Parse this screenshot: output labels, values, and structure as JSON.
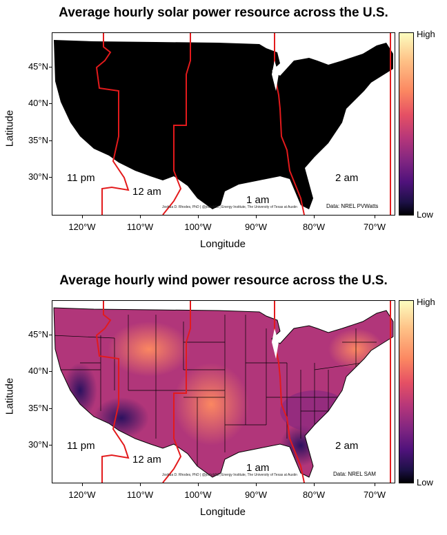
{
  "solar": {
    "title": "Average hourly solar power resource across the U.S.",
    "ylabel": "Latitude",
    "xlabel": "Longitude",
    "lat_ticks": [
      "45°N",
      "40°N",
      "35°N",
      "30°N"
    ],
    "lon_ticks": [
      "120°W",
      "110°W",
      "100°W",
      "90°W",
      "80°W",
      "70°W"
    ],
    "legend_high": "High",
    "legend_low": "Low",
    "timezones": [
      "11 pm",
      "12 am",
      "1 am",
      "2 am"
    ],
    "credit": "Joshua D. Rhodes, PhD | @joshdr83 | Energy Institute, The University of Texas at Austin",
    "source": "Data: NREL PVWatts",
    "fill_color": "#000000"
  },
  "wind": {
    "title": "Average hourly wind power resource across the U.S.",
    "ylabel": "Latitude",
    "xlabel": "Longitude",
    "lat_ticks": [
      "45°N",
      "40°N",
      "35°N",
      "30°N"
    ],
    "lon_ticks": [
      "120°W",
      "110°W",
      "100°W",
      "90°W",
      "80°W",
      "70°W"
    ],
    "legend_high": "High",
    "legend_low": "Low",
    "timezones": [
      "11 pm",
      "12 am",
      "1 am",
      "2 am"
    ],
    "credit": "Joshua D. Rhodes, PhD | @joshdr83 | Energy Institute, The University of Texas at Austin",
    "source": "Data: NREL SAM",
    "fill_color": "#b1367a"
  },
  "colors": {
    "timezone_line": "#e31a1c",
    "state_line": "#000000"
  }
}
